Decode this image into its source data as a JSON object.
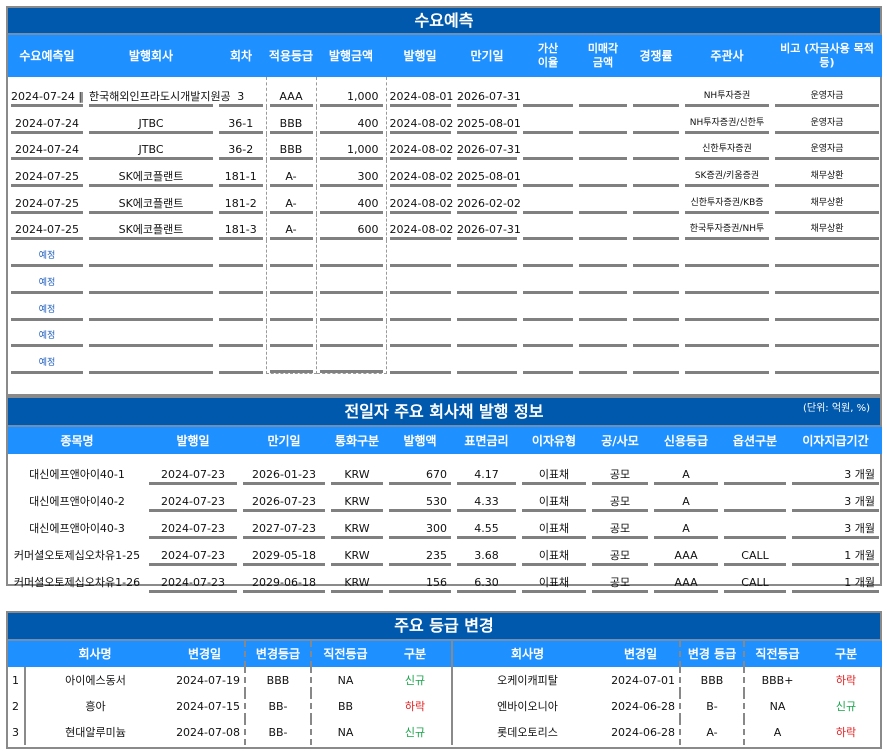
{
  "demand": {
    "title": "수요예측",
    "headers": [
      "수요예측일",
      "발행회사",
      "회차",
      "적용등급",
      "발행금액",
      "발행일",
      "만기일",
      "가산\n이율",
      "미매각\n금액",
      "경쟁률",
      "주관사",
      "비고 (자금사용 목적 등)"
    ],
    "rows": [
      [
        "2024-07-24 ‖",
        "한국해외인프라도시개발지원공",
        "3",
        "AAA",
        "1,000",
        "2024-08-01",
        "2026-07-31",
        "",
        "",
        "",
        "NH투자증권",
        "운영자금"
      ],
      [
        "2024-07-24",
        "JTBC",
        "36-1",
        "BBB",
        "400",
        "2024-08-02",
        "2025-08-01",
        "",
        "",
        "",
        "NH투자증권/신한투",
        "운영자금"
      ],
      [
        "2024-07-24",
        "JTBC",
        "36-2",
        "BBB",
        "1,000",
        "2024-08-02",
        "2026-07-31",
        "",
        "",
        "",
        "신한투자증권",
        "운영자금"
      ],
      [
        "2024-07-25",
        "SK에코플랜트",
        "181-1",
        "A-",
        "300",
        "2024-08-02",
        "2025-08-01",
        "",
        "",
        "",
        "SK증권/키움증권",
        "채무상환"
      ],
      [
        "2024-07-25",
        "SK에코플랜트",
        "181-2",
        "A-",
        "400",
        "2024-08-02",
        "2026-02-02",
        "",
        "",
        "",
        "신한투자증권/KB증",
        "채무상환"
      ],
      [
        "2024-07-25",
        "SK에코플랜트",
        "181-3",
        "A-",
        "600",
        "2024-08-02",
        "2026-07-31",
        "",
        "",
        "",
        "한국투자증권/NH투",
        "채무상환"
      ]
    ],
    "planned": [
      "예정",
      "예정",
      "예정",
      "예정",
      "예정"
    ]
  },
  "issuance": {
    "title": "전일자 주요 회사채 발행 정보",
    "unit": "(단위: 억원, %)",
    "headers": [
      "종목명",
      "발행일",
      "만기일",
      "통화구분",
      "발행액",
      "표면금리",
      "이자유형",
      "공/사모",
      "신용등급",
      "옵션구분",
      "이자지급기간"
    ],
    "rows": [
      [
        "대신에프앤아이40-1",
        "2024-07-23",
        "2026-01-23",
        "KRW",
        "670",
        "4.17",
        "이표채",
        "공모",
        "A",
        "",
        "3 개월"
      ],
      [
        "대신에프앤아이40-2",
        "2024-07-23",
        "2026-07-23",
        "KRW",
        "530",
        "4.33",
        "이표채",
        "공모",
        "A",
        "",
        "3 개월"
      ],
      [
        "대신에프앤아이40-3",
        "2024-07-23",
        "2027-07-23",
        "KRW",
        "300",
        "4.55",
        "이표채",
        "공모",
        "A",
        "",
        "3 개월"
      ],
      [
        "커머셜오토제십오차유1-25",
        "2024-07-23",
        "2029-05-18",
        "KRW",
        "235",
        "3.68",
        "이표채",
        "공모",
        "AAA",
        "CALL",
        "1 개월"
      ],
      [
        "커머셜오토제십오차유1-26",
        "2024-07-23",
        "2029-06-18",
        "KRW",
        "156",
        "6.30",
        "이표채",
        "공모",
        "AAA",
        "CALL",
        "1 개월"
      ]
    ]
  },
  "ratings": {
    "title": "주요 등급 변경",
    "left_headers": [
      "회사명",
      "변경일",
      "변경등급",
      "직전등급",
      "구분"
    ],
    "right_headers": [
      "회사명",
      "변경일",
      "변경 등급",
      "직전등급",
      "구분"
    ],
    "left": [
      [
        "1",
        "아이에스동서",
        "2024-07-19",
        "BBB",
        "NA",
        "신규"
      ],
      [
        "2",
        "흥아",
        "2024-07-15",
        "BB-",
        "BB",
        "하락"
      ],
      [
        "3",
        "현대알루미늄",
        "2024-07-08",
        "BB-",
        "NA",
        "신규"
      ]
    ],
    "right": [
      [
        "오케이캐피탈",
        "2024-07-01",
        "BBB",
        "BBB+",
        "하락"
      ],
      [
        "엔바이오니아",
        "2024-06-28",
        "B-",
        "NA",
        "신규"
      ],
      [
        "롯데오토리스",
        "2024-06-28",
        "A-",
        "A",
        "하락"
      ]
    ],
    "colors": {
      "신규": "#1aa34a",
      "하락": "#e02020",
      "header": "#1e90ff",
      "title": "#0059ad"
    }
  }
}
